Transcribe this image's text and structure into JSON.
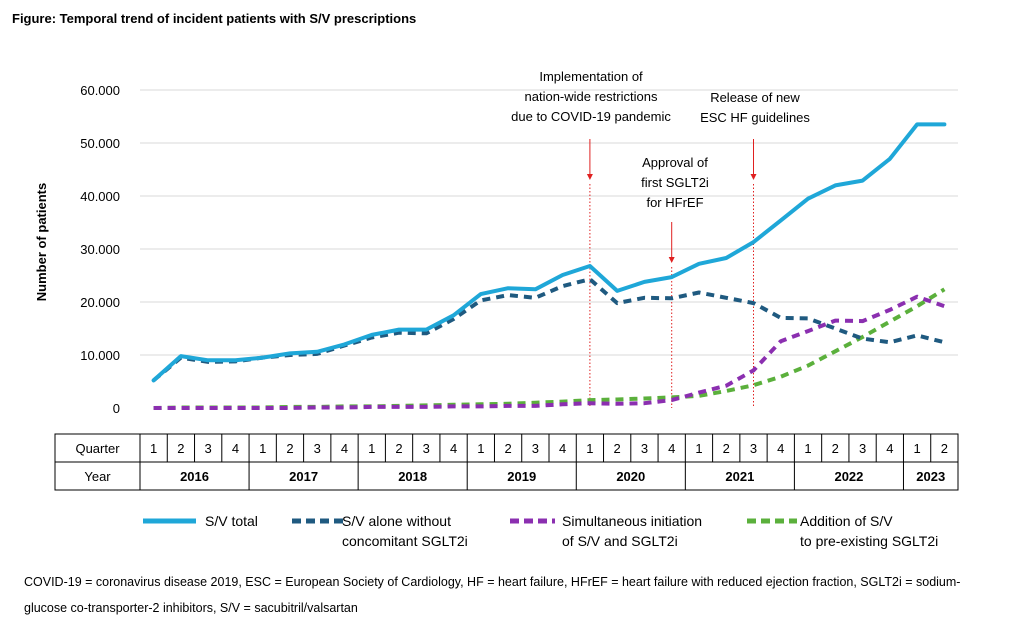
{
  "figure": {
    "title": "Figure: Temporal trend of incident patients with S/V prescriptions",
    "footnote": "COVID-19 = coronavirus disease 2019, ESC = European Society of Cardiology, HF = heart failure, HFrEF = heart failure with reduced ejection fraction, SGLT2i = sodium-glucose co-transporter-2 inhibitors, S/V = sacubitril/valsartan"
  },
  "chart_data": {
    "type": "line",
    "ylabel": "Number of patients",
    "ylim": [
      0,
      60000
    ],
    "ytick_labels": [
      "0",
      "10.000",
      "20.000",
      "30.000",
      "40.000",
      "50.000",
      "60.000"
    ],
    "grid": true,
    "table": {
      "quarter_label": "Quarter",
      "year_label": "Year",
      "quarters": [
        "1",
        "2",
        "3",
        "4",
        "1",
        "2",
        "3",
        "4",
        "1",
        "2",
        "3",
        "4",
        "1",
        "2",
        "3",
        "4",
        "1",
        "2",
        "3",
        "4",
        "1",
        "2",
        "3",
        "4",
        "1",
        "2",
        "3",
        "4",
        "1",
        "2"
      ],
      "years": [
        {
          "label": "2016",
          "span": 4
        },
        {
          "label": "2017",
          "span": 4
        },
        {
          "label": "2018",
          "span": 4
        },
        {
          "label": "2019",
          "span": 4
        },
        {
          "label": "2020",
          "span": 4
        },
        {
          "label": "2021",
          "span": 4
        },
        {
          "label": "2022",
          "span": 4
        },
        {
          "label": "2023",
          "span": 2
        }
      ]
    },
    "series": [
      {
        "name": "S/V total",
        "color": "#1fa7d8",
        "style": "solid",
        "values": [
          5200,
          9800,
          9000,
          9000,
          9500,
          10300,
          10600,
          12000,
          13800,
          14800,
          14800,
          17500,
          21500,
          22600,
          22400,
          25100,
          26800,
          22100,
          23800,
          24700,
          27200,
          28300,
          31300,
          35400,
          39500,
          42000,
          42900,
          47000,
          53500,
          53500
        ]
      },
      {
        "name": "S/V alone without concomitant SGLT2i",
        "color": "#1f5a80",
        "style": "dashed",
        "values": [
          5200,
          9500,
          8700,
          8800,
          9500,
          10000,
          10200,
          11800,
          13300,
          14200,
          14100,
          16800,
          20300,
          21300,
          20800,
          23000,
          24300,
          19800,
          20800,
          20700,
          21800,
          20800,
          19800,
          17000,
          16900,
          15000,
          13100,
          12400,
          13700,
          12400
        ]
      },
      {
        "name": "Simultaneous initiation of S/V and SGLT2i",
        "color": "#8b2fb0",
        "style": "dashed",
        "values": [
          0,
          0,
          0,
          0,
          0,
          0,
          100,
          100,
          200,
          200,
          200,
          300,
          300,
          400,
          400,
          700,
          900,
          800,
          900,
          1500,
          2900,
          4200,
          7100,
          12600,
          14500,
          16500,
          16400,
          18500,
          21000,
          19200
        ]
      },
      {
        "name": "Addition of S/V to pre-existing SGLT2i",
        "color": "#5bb03c",
        "style": "dashed",
        "values": [
          0,
          100,
          100,
          100,
          100,
          200,
          200,
          300,
          300,
          400,
          500,
          600,
          700,
          800,
          1000,
          1200,
          1500,
          1600,
          1800,
          2000,
          2300,
          3200,
          4300,
          5900,
          8000,
          10700,
          13400,
          16300,
          19200,
          22400
        ]
      }
    ],
    "legend": {
      "placement": "bottom",
      "entries": [
        {
          "label_lines": [
            "S/V total"
          ]
        },
        {
          "label_lines": [
            "S/V alone without",
            "concomitant SGLT2i"
          ]
        },
        {
          "label_lines": [
            "Simultaneous initiation",
            "of S/V and SGLT2i"
          ]
        },
        {
          "label_lines": [
            "Addition of S/V",
            "to pre-existing SGLT2i"
          ]
        }
      ]
    },
    "annotations": [
      {
        "text_lines": [
          "Implementation of",
          "nation-wide restrictions",
          "due to COVID-19 pandemic"
        ],
        "x_index": 16,
        "color": "#e02020"
      },
      {
        "text_lines": [
          "Approval of",
          "first SGLT2i",
          "for HFrEF"
        ],
        "x_index": 19,
        "color": "#e02020"
      },
      {
        "text_lines": [
          "Release of new",
          "ESC HF guidelines"
        ],
        "x_index": 22,
        "color": "#e02020"
      }
    ]
  }
}
